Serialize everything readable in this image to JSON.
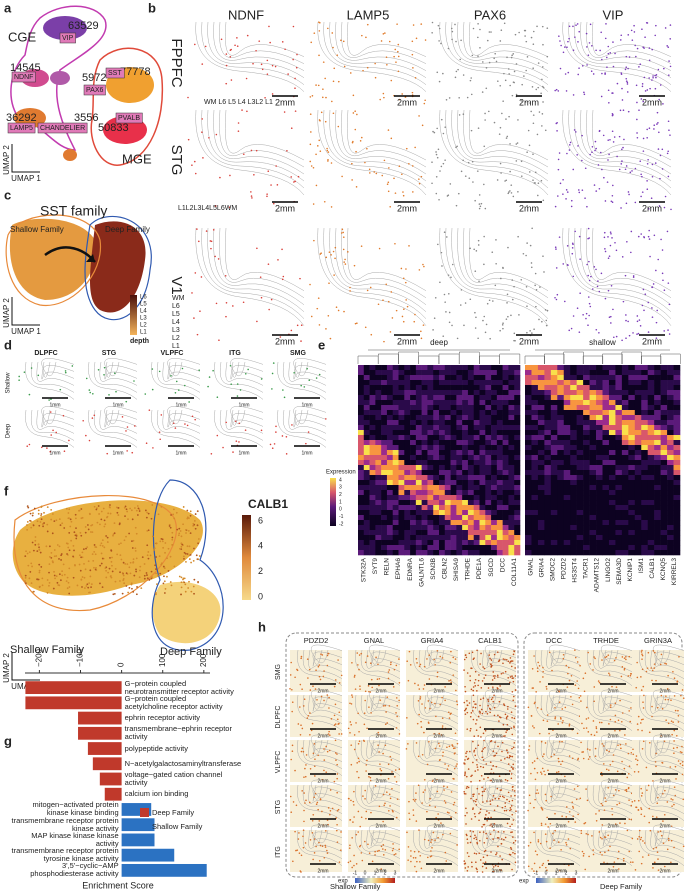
{
  "panels": {
    "a": {
      "label": "a",
      "cge": "CGE",
      "mge": "MGE",
      "clusters": [
        {
          "count": 63529,
          "name": "VIP"
        },
        {
          "count": 14545,
          "name": "NDNF"
        },
        {
          "count": 5972,
          "name": "PAX6"
        },
        {
          "count": 77778,
          "name": "SST"
        },
        {
          "count": 36292,
          "name": "LAMP5"
        },
        {
          "count": 3556,
          "name": "CHANDELIER"
        },
        {
          "count": 50833,
          "name": "PVALB"
        }
      ],
      "umap_x": "UMAP 1",
      "umap_y": "UMAP 2"
    },
    "b": {
      "label": "b",
      "genes": [
        "NDNF",
        "LAMP5",
        "PAX6",
        "VIP"
      ],
      "regions": [
        "FPPFC",
        "STG",
        "V1"
      ],
      "scale": "2mm",
      "layers_stg": "WM L6 L5 L4 L3L2 L1",
      "layers_v1_top": "L1L2L3L4L5L6WM",
      "layers_v1_side": [
        "WM",
        "L6",
        "L5",
        "L4",
        "L3",
        "L2",
        "L1"
      ]
    },
    "c": {
      "label": "c",
      "title": "SST family",
      "shallow": "Shallow Family",
      "deep": "Deep Family",
      "depth_ticks": [
        "L6",
        "L5",
        "L4",
        "L3",
        "L2",
        "L1"
      ],
      "depth": "depth",
      "umap_x": "UMAP 1",
      "umap_y": "UMAP 2"
    },
    "d": {
      "label": "d",
      "regions": [
        "DLPFC",
        "STG",
        "VLPFC",
        "ITG",
        "SMG"
      ],
      "rows": [
        "Shallow",
        "Deep"
      ],
      "scale": "1mm"
    },
    "e": {
      "label": "e",
      "groups": [
        "deep",
        "shallow"
      ],
      "legend_title": "Expression",
      "legend_ticks": [
        4,
        3,
        2,
        1,
        0,
        -1,
        -2
      ],
      "genes_deep": [
        "STK32A",
        "SYT9",
        "RELN",
        "EPHA6",
        "EDNRA",
        "GALNTL6",
        "SCN3B",
        "CBLN2",
        "SHISA9",
        "TRHDE",
        "PDE1A",
        "SGCD",
        "DCC",
        "COL11A1"
      ],
      "genes_shallow": [
        "GNAL",
        "GRIA4",
        "SMOC2",
        "PDZD2",
        "HS3ST4",
        "TACR1",
        "ADAMTS12",
        "LINGO2",
        "SEMA3D",
        "KCNIP1",
        "ISM1",
        "CALB1",
        "KCNQ5",
        "KIRREL3"
      ]
    },
    "f": {
      "label": "f",
      "gene": "CALB1",
      "ticks": [
        6,
        4,
        2,
        0
      ],
      "shallow": "Shallow Family",
      "deep": "Deep Family",
      "umap_x": "UMAP 1",
      "umap_y": "UMAP 2"
    },
    "h": {
      "label": "h",
      "genes_shallow": [
        "PDZD2",
        "GNAL",
        "GRIA4",
        "CALB1"
      ],
      "genes_deep": [
        "DCC",
        "TRHDE",
        "GRIN3A"
      ],
      "regions": [
        "SMG",
        "DLPFC",
        "VLPFC",
        "STG",
        "ITG"
      ],
      "scale": "2mm",
      "shallow": "Shallow Family",
      "deep": "Deep Family",
      "exp": "exp",
      "exp_ticks": [
        -1,
        0,
        1,
        2,
        3
      ]
    }
  },
  "chart_data": {
    "type": "bar",
    "panel_label": "g",
    "x_label": "Enrichment Score",
    "categories": [
      "G−protein coupled\nneurotransmitter receptor activity",
      "G−protein coupled\nacetylcholine receptor activity",
      "ephrin receptor activity",
      "transmembrane−ephrin receptor\nactivity",
      "polypeptide activity",
      "N−acetylgalactosaminyltransferase",
      "voltage−gated cation channel\nactivity",
      "calcium ion binding",
      "mitogen−activated protein\nkinase kinase binding",
      "transmembrane receptor protein\nkinase activity",
      "MAP kinase kinase kinase\nactivity",
      "transmembrane receptor protein\ntyrosine kinase activity",
      "3',5'−cyclic−AMP\nphosphodiesterase activity"
    ],
    "series": [
      {
        "name": "Deep Family",
        "color": "#c0392b",
        "values": [
          -234,
          -234,
          -106,
          -106,
          -82,
          -70,
          -53,
          -41,
          null,
          null,
          null,
          null,
          null
        ]
      },
      {
        "name": "Shallow Family",
        "color": "#2b72c2",
        "values": [
          null,
          null,
          null,
          null,
          null,
          null,
          null,
          null,
          72,
          80,
          80,
          128,
          207
        ]
      }
    ],
    "xlim": [
      -235,
      215
    ],
    "xticks": [
      {
        "value": -200,
        "label": "−200"
      },
      {
        "value": -100,
        "label": "−100"
      },
      0,
      100,
      200
    ]
  }
}
